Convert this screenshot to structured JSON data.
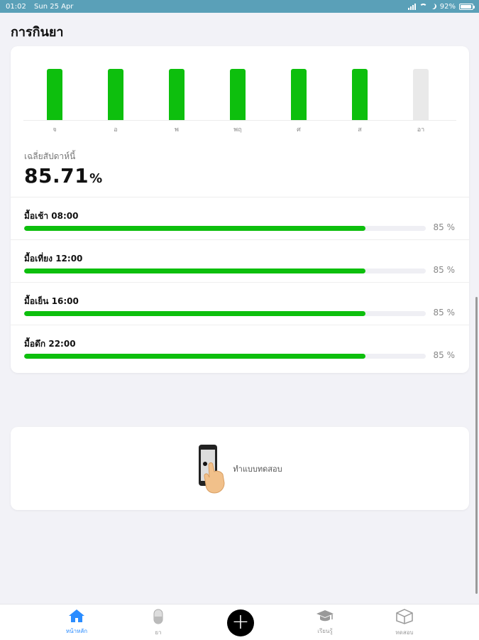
{
  "status_bar": {
    "time": "01:02",
    "date": "Sun 25 Apr",
    "battery": "92%",
    "battery_level": 0.92
  },
  "page": {
    "title": "การกินยา"
  },
  "colors": {
    "accent_green": "#0dbf0d",
    "empty_bar": "#e9e9e9",
    "tab_active": "#2a8cff"
  },
  "weekly_chart": {
    "type": "bar",
    "categories": [
      "จ",
      "อ",
      "พ",
      "พฤ",
      "ศ",
      "ส",
      "อา"
    ],
    "values": [
      1,
      1,
      1,
      1,
      1,
      1,
      0
    ],
    "ylim": [
      0,
      1
    ]
  },
  "weekly_average": {
    "label": "เฉลี่ยสัปดาห์นี้",
    "value": "85.71",
    "unit": "%"
  },
  "meals": [
    {
      "label": "มื้อเช้า 08:00",
      "percent_text": "85 %",
      "percent": 85
    },
    {
      "label": "มื้อเที่ยง 12:00",
      "percent_text": "85 %",
      "percent": 85
    },
    {
      "label": "มื้อเย็น 16:00",
      "percent_text": "85 %",
      "percent": 85
    },
    {
      "label": "มื้อดึก 22:00",
      "percent_text": "85 %",
      "percent": 85
    }
  ],
  "test_card": {
    "label": "ทำแบบทดสอบ",
    "icon": "phone-tap-icon"
  },
  "tabbar": {
    "items": [
      {
        "label": "หน้าหลัก",
        "icon": "home-icon",
        "active": true
      },
      {
        "label": "ยา",
        "icon": "pill-icon",
        "active": false
      },
      {
        "label": "",
        "icon": "plus-icon",
        "active": false
      },
      {
        "label": "เรียนรู้",
        "icon": "graduation-cap-icon",
        "active": false
      },
      {
        "label": "ทดสอบ",
        "icon": "box-icon",
        "active": false
      }
    ]
  }
}
